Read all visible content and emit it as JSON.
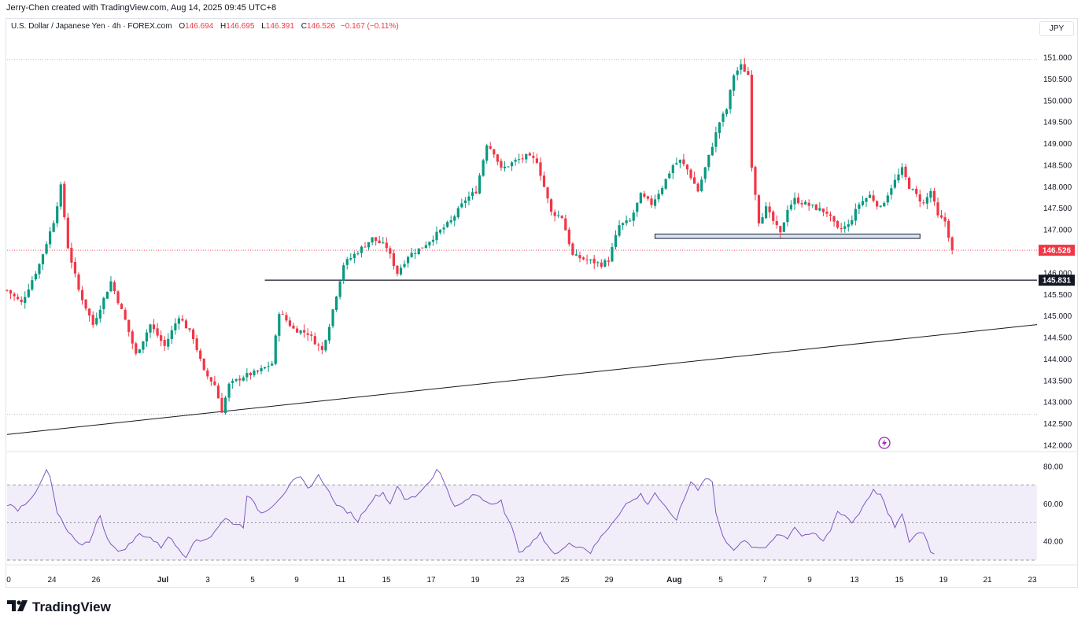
{
  "header": {
    "credit": "Jerry-Chen created with TradingView.com, Aug 14, 2025 09:45 UTC+8",
    "symbol": "U.S. Dollar / Japanese Yen · 4h · FOREX.com",
    "open_label": "O",
    "open": "146.694",
    "high_label": "H",
    "high": "146.695",
    "low_label": "L",
    "low": "146.391",
    "close_label": "C",
    "close": "146.526",
    "change": "−0.167 (−0.11%)",
    "currency": "JPY"
  },
  "brand": {
    "logo": "17",
    "name": "TradingView"
  },
  "colors": {
    "up": "#089981",
    "down": "#f23645",
    "rsi_line": "#7e57c2",
    "rsi_band": "rgba(126,87,194,0.1)",
    "grid": "#b2b5be",
    "axis_text": "#131722"
  },
  "chart_data": [
    {
      "type": "candlestick",
      "title": "U.S. Dollar / Japanese Yen · 4h · FOREX.com",
      "ylim": [
        142.0,
        151.0
      ],
      "y_ticks": [
        "151.000",
        "150.500",
        "150.000",
        "149.500",
        "149.000",
        "148.500",
        "148.000",
        "147.500",
        "147.000",
        "146.500",
        "146.000",
        "145.500",
        "145.000",
        "144.500",
        "144.000",
        "143.500",
        "143.000",
        "142.500",
        "142.000"
      ],
      "x_ticks": [
        "0",
        "24",
        "26",
        "Jul",
        "3",
        "5",
        "9",
        "11",
        "15",
        "17",
        "19",
        "23",
        "25",
        "29",
        "Aug",
        "5",
        "7",
        "9",
        "13",
        "15",
        "19",
        "21",
        "23"
      ],
      "last_price": "146.526",
      "marked_level": "145.831",
      "dotted_levels": [
        150.95,
        146.526,
        142.72
      ],
      "support_zone": [
        146.8,
        146.9
      ],
      "trendline": [
        [
          0,
          142.25
        ],
        [
          1,
          144.8
        ]
      ],
      "anchors": [
        [
          0,
          145.6
        ],
        [
          4,
          145.3
        ],
        [
          9,
          146.2
        ],
        [
          13,
          147.2
        ],
        [
          15,
          148.0
        ],
        [
          17,
          146.6
        ],
        [
          20,
          145.6
        ],
        [
          24,
          144.8
        ],
        [
          29,
          145.8
        ],
        [
          33,
          144.9
        ],
        [
          36,
          144.1
        ],
        [
          40,
          144.8
        ],
        [
          44,
          144.3
        ],
        [
          48,
          145.0
        ],
        [
          52,
          144.5
        ],
        [
          55,
          143.7
        ],
        [
          58,
          143.4
        ],
        [
          60,
          142.8
        ],
        [
          62,
          143.4
        ],
        [
          66,
          143.6
        ],
        [
          70,
          143.7
        ],
        [
          74,
          143.9
        ],
        [
          76,
          145.1
        ],
        [
          80,
          144.7
        ],
        [
          84,
          144.6
        ],
        [
          88,
          144.2
        ],
        [
          90,
          144.8
        ],
        [
          94,
          146.2
        ],
        [
          98,
          146.5
        ],
        [
          102,
          146.8
        ],
        [
          106,
          146.6
        ],
        [
          109,
          146.0
        ],
        [
          112,
          146.4
        ],
        [
          116,
          146.6
        ],
        [
          120,
          146.9
        ],
        [
          124,
          147.2
        ],
        [
          128,
          147.7
        ],
        [
          131,
          147.9
        ],
        [
          134,
          149.0
        ],
        [
          136,
          148.8
        ],
        [
          138,
          148.4
        ],
        [
          140,
          148.5
        ],
        [
          142,
          148.6
        ],
        [
          145,
          148.7
        ],
        [
          148,
          148.6
        ],
        [
          150,
          148.0
        ],
        [
          152,
          147.4
        ],
        [
          155,
          147.3
        ],
        [
          158,
          146.4
        ],
        [
          162,
          146.3
        ],
        [
          166,
          146.2
        ],
        [
          168,
          146.3
        ],
        [
          171,
          147.1
        ],
        [
          174,
          147.2
        ],
        [
          177,
          147.8
        ],
        [
          180,
          147.6
        ],
        [
          183,
          148.0
        ],
        [
          186,
          148.5
        ],
        [
          188,
          148.6
        ],
        [
          190,
          148.4
        ],
        [
          193,
          147.9
        ],
        [
          196,
          148.7
        ],
        [
          199,
          149.5
        ],
        [
          201,
          149.8
        ],
        [
          203,
          150.6
        ],
        [
          205,
          150.8
        ],
        [
          207,
          150.6
        ],
        [
          208,
          148.5
        ],
        [
          210,
          147.2
        ],
        [
          212,
          147.5
        ],
        [
          214,
          147.2
        ],
        [
          216,
          146.9
        ],
        [
          218,
          147.5
        ],
        [
          220,
          147.7
        ],
        [
          223,
          147.6
        ],
        [
          226,
          147.5
        ],
        [
          229,
          147.4
        ],
        [
          232,
          147.0
        ],
        [
          235,
          147.1
        ],
        [
          238,
          147.6
        ],
        [
          241,
          147.8
        ],
        [
          244,
          147.5
        ],
        [
          247,
          148.0
        ],
        [
          250,
          148.4
        ],
        [
          252,
          148.0
        ],
        [
          254,
          147.8
        ],
        [
          256,
          147.6
        ],
        [
          258,
          147.9
        ],
        [
          260,
          147.3
        ],
        [
          262,
          147.2
        ],
        [
          264,
          146.53
        ]
      ]
    },
    {
      "type": "line",
      "title": "RSI",
      "ylim": [
        30,
        82
      ],
      "y_ticks": [
        "80.00",
        "60.00",
        "40.00"
      ],
      "reference_levels": [
        70,
        50,
        30
      ],
      "anchors": [
        [
          0,
          60
        ],
        [
          3,
          57
        ],
        [
          6,
          62
        ],
        [
          9,
          69
        ],
        [
          11,
          78
        ],
        [
          12,
          74
        ],
        [
          14,
          55
        ],
        [
          17,
          45
        ],
        [
          20,
          38
        ],
        [
          23,
          40
        ],
        [
          25,
          50
        ],
        [
          26,
          53
        ],
        [
          28,
          42
        ],
        [
          31,
          34
        ],
        [
          34,
          38
        ],
        [
          37,
          44
        ],
        [
          40,
          42
        ],
        [
          43,
          37
        ],
        [
          45,
          43
        ],
        [
          47,
          38
        ],
        [
          50,
          32
        ],
        [
          52,
          40
        ],
        [
          54,
          40
        ],
        [
          57,
          43
        ],
        [
          59,
          48
        ],
        [
          61,
          52
        ],
        [
          63,
          50
        ],
        [
          66,
          48
        ],
        [
          67,
          65
        ],
        [
          69,
          60
        ],
        [
          71,
          55
        ],
        [
          74,
          59
        ],
        [
          77,
          65
        ],
        [
          80,
          72
        ],
        [
          82,
          74
        ],
        [
          84,
          68
        ],
        [
          87,
          75
        ],
        [
          89,
          70
        ],
        [
          91,
          62
        ],
        [
          93,
          58
        ],
        [
          96,
          55
        ],
        [
          98,
          51
        ],
        [
          101,
          60
        ],
        [
          103,
          64
        ],
        [
          105,
          66
        ],
        [
          107,
          60
        ],
        [
          109,
          70
        ],
        [
          111,
          62
        ],
        [
          114,
          64
        ],
        [
          116,
          68
        ],
        [
          118,
          72
        ],
        [
          120,
          78
        ],
        [
          121,
          76
        ],
        [
          123,
          68
        ],
        [
          125,
          58
        ],
        [
          127,
          60
        ],
        [
          129,
          63
        ],
        [
          131,
          65
        ],
        [
          133,
          62
        ],
        [
          136,
          60
        ],
        [
          138,
          63
        ],
        [
          139,
          55
        ],
        [
          141,
          47
        ],
        [
          143,
          35
        ],
        [
          145,
          36
        ],
        [
          147,
          40
        ],
        [
          149,
          44
        ],
        [
          151,
          38
        ],
        [
          153,
          33
        ],
        [
          155,
          35
        ],
        [
          157,
          40
        ],
        [
          159,
          37
        ],
        [
          161,
          37
        ],
        [
          163,
          34
        ],
        [
          165,
          40
        ],
        [
          167,
          45
        ],
        [
          169,
          50
        ],
        [
          171,
          55
        ],
        [
          173,
          60
        ],
        [
          175,
          62
        ],
        [
          177,
          65
        ],
        [
          179,
          60
        ],
        [
          181,
          66
        ],
        [
          183,
          60
        ],
        [
          185,
          55
        ],
        [
          187,
          52
        ],
        [
          189,
          62
        ],
        [
          191,
          72
        ],
        [
          193,
          68
        ],
        [
          195,
          74
        ],
        [
          197,
          72
        ],
        [
          198,
          55
        ],
        [
          200,
          42
        ],
        [
          203,
          36
        ],
        [
          206,
          40
        ],
        [
          209,
          36
        ],
        [
          212,
          37
        ],
        [
          215,
          44
        ],
        [
          218,
          42
        ],
        [
          220,
          48
        ],
        [
          222,
          43
        ],
        [
          224,
          44
        ],
        [
          226,
          43
        ],
        [
          228,
          40
        ],
        [
          230,
          46
        ],
        [
          232,
          56
        ],
        [
          234,
          54
        ],
        [
          236,
          50
        ],
        [
          238,
          55
        ],
        [
          240,
          62
        ],
        [
          242,
          67
        ],
        [
          244,
          65
        ],
        [
          246,
          55
        ],
        [
          248,
          48
        ],
        [
          250,
          54
        ],
        [
          252,
          40
        ],
        [
          254,
          44
        ],
        [
          256,
          45
        ],
        [
          258,
          35
        ],
        [
          259,
          33
        ]
      ]
    }
  ]
}
